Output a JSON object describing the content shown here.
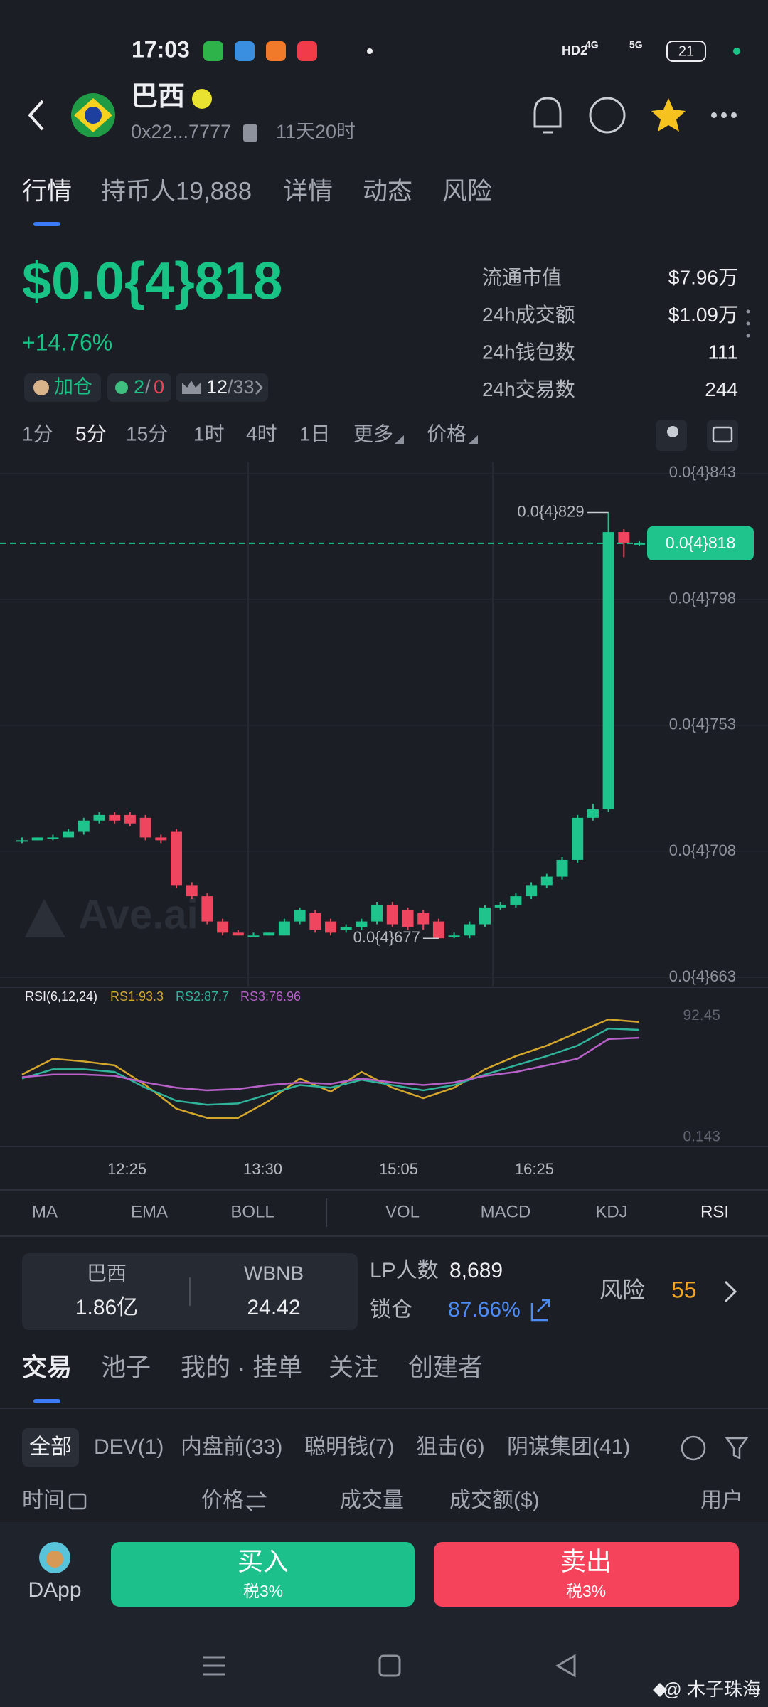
{
  "status_bar": {
    "time": "17:03",
    "hd": "HD2",
    "network_a": "4G",
    "network_b": "5G",
    "battery": "21"
  },
  "header": {
    "name": "巴西",
    "address": "0x22...7777",
    "age": "11天20时"
  },
  "tabs": [
    "行情",
    "持币人19,888",
    "详情",
    "动态",
    "风险"
  ],
  "price": {
    "value": "$0.0{4}818",
    "change": "+14.76%",
    "tag_add": "加仓",
    "dev_buy": "2",
    "dev_sep": "/",
    "dev_sell": "0",
    "rank": "12",
    "rank_total": "/33"
  },
  "stats": [
    {
      "label": "流通市值",
      "value": "$7.96万"
    },
    {
      "label": "24h成交额",
      "value": "$1.09万"
    },
    {
      "label": "24h钱包数",
      "value": "111"
    },
    {
      "label": "24h交易数",
      "value": "244"
    }
  ],
  "intervals": [
    "1分",
    "5分",
    "15分",
    "1时",
    "4时",
    "1日",
    "更多",
    "价格"
  ],
  "chart_data": [
    {
      "type": "candlestick",
      "watermark": "Ave.ai",
      "up_color": "#1ec48c",
      "down_color": "#f0455e",
      "open": [
        7.12e-05,
        7.12e-05,
        7.13e-05,
        7.13e-05,
        7.15e-05,
        7.19e-05,
        7.21e-05,
        7.21e-05,
        7.2e-05,
        7.13e-05,
        7.15e-05,
        6.96e-05,
        6.92e-05,
        6.83e-05,
        6.79e-05,
        6.78e-05,
        6.78e-05,
        6.78e-05,
        6.83e-05,
        6.86e-05,
        6.83e-05,
        6.8e-05,
        6.81e-05,
        6.83e-05,
        6.89e-05,
        6.87e-05,
        6.86e-05,
        6.83e-05,
        6.78e-05,
        6.78e-05,
        6.82e-05,
        6.88e-05,
        6.89e-05,
        6.92e-05,
        6.96e-05,
        6.99e-05,
        7.05e-05,
        7.2e-05,
        7.23e-05,
        8.22e-05,
        8.18e-05
      ],
      "close": [
        7.12e-05,
        7.13e-05,
        7.13e-05,
        7.15e-05,
        7.19e-05,
        7.21e-05,
        7.19e-05,
        7.18e-05,
        7.13e-05,
        7.12e-05,
        6.96e-05,
        6.92e-05,
        6.83e-05,
        6.79e-05,
        6.78e-05,
        6.78e-05,
        6.79e-05,
        6.83e-05,
        6.87e-05,
        6.8e-05,
        6.79e-05,
        6.81e-05,
        6.83e-05,
        6.89e-05,
        6.82e-05,
        6.81e-05,
        6.82e-05,
        6.77e-05,
        6.78e-05,
        6.82e-05,
        6.88e-05,
        6.89e-05,
        6.92e-05,
        6.96e-05,
        6.99e-05,
        7.05e-05,
        7.2e-05,
        7.23e-05,
        8.22e-05,
        8.18e-05,
        8.18e-05
      ],
      "high": [
        7.13e-05,
        7.13e-05,
        7.14e-05,
        7.16e-05,
        7.2e-05,
        7.22e-05,
        7.22e-05,
        7.22e-05,
        7.21e-05,
        7.14e-05,
        7.16e-05,
        6.97e-05,
        6.93e-05,
        6.84e-05,
        6.8e-05,
        6.79e-05,
        6.79e-05,
        6.84e-05,
        6.88e-05,
        6.87e-05,
        6.84e-05,
        6.82e-05,
        6.84e-05,
        6.9e-05,
        6.9e-05,
        6.88e-05,
        6.87e-05,
        6.84e-05,
        6.79e-05,
        6.83e-05,
        6.89e-05,
        6.9e-05,
        6.93e-05,
        6.97e-05,
        7e-05,
        7.06e-05,
        7.21e-05,
        7.25e-05,
        8.29e-05,
        8.23e-05,
        8.19e-05
      ],
      "low": [
        7.11e-05,
        7.12e-05,
        7.12e-05,
        7.13e-05,
        7.14e-05,
        7.18e-05,
        7.18e-05,
        7.17e-05,
        7.12e-05,
        7.11e-05,
        6.95e-05,
        6.91e-05,
        6.82e-05,
        6.78e-05,
        6.78e-05,
        6.78e-05,
        6.78e-05,
        6.78e-05,
        6.82e-05,
        6.79e-05,
        6.78e-05,
        6.79e-05,
        6.8e-05,
        6.82e-05,
        6.81e-05,
        6.8e-05,
        6.8e-05,
        6.77e-05,
        6.77e-05,
        6.77e-05,
        6.81e-05,
        6.87e-05,
        6.88e-05,
        6.91e-05,
        6.95e-05,
        6.98e-05,
        7.04e-05,
        7.19e-05,
        7.22e-05,
        8.13e-05,
        8.17e-05
      ],
      "ylim": [
        6.603e-05,
        8.469e-05
      ],
      "yticks": [
        {
          "value": 8.43e-05,
          "label": "0.0{4}843"
        },
        {
          "value": 7.98e-05,
          "label": "0.0{4}798"
        },
        {
          "value": 7.53e-05,
          "label": "0.0{4}753"
        },
        {
          "value": 7.08e-05,
          "label": "0.0{4}708"
        },
        {
          "value": 6.63e-05,
          "label": "0.0{4}663"
        }
      ],
      "last_price": {
        "value": 8.18e-05,
        "label": "0.0{4}818"
      },
      "high_label": {
        "value": 8.29e-05,
        "label": "0.0{4}829"
      },
      "low_label": {
        "value": 6.77e-05,
        "label": "0.0{4}677"
      }
    },
    {
      "type": "line",
      "title": "RSI(6,12,24)",
      "x": [
        0,
        2,
        4,
        6,
        8,
        10,
        12,
        14,
        16,
        18,
        20,
        22,
        24,
        26,
        28,
        30,
        32,
        34,
        36,
        38,
        40
      ],
      "xticks": [
        {
          "value": 6.8,
          "label": "12:25"
        },
        {
          "value": 15.6,
          "label": "13:30"
        },
        {
          "value": 24.4,
          "label": "15:05"
        },
        {
          "value": 33.2,
          "label": "16:25"
        }
      ],
      "series": [
        {
          "name": "RS1:93.3",
          "color": "#d4a72c",
          "values": [
            48,
            60,
            58,
            55,
            40,
            22,
            15,
            15,
            28,
            45,
            35,
            50,
            38,
            30,
            38,
            52,
            62,
            70,
            80,
            90,
            88
          ]
        },
        {
          "name": "RS2:87.7",
          "color": "#2fb39a",
          "values": [
            45,
            52,
            52,
            50,
            38,
            28,
            25,
            26,
            33,
            40,
            38,
            44,
            40,
            36,
            40,
            48,
            55,
            62,
            70,
            83,
            82
          ]
        },
        {
          "name": "RS3:76.96",
          "color": "#b660c8",
          "values": [
            46,
            48,
            48,
            47,
            42,
            38,
            36,
            37,
            40,
            42,
            41,
            45,
            42,
            40,
            42,
            47,
            50,
            55,
            60,
            75,
            76
          ]
        }
      ],
      "ylim": [
        -5.73,
        113.4
      ],
      "yticks": [
        92.45,
        0.143
      ]
    }
  ],
  "indicators": [
    "MA",
    "EMA",
    "BOLL",
    "VOL",
    "MACD",
    "KDJ",
    "RSI"
  ],
  "pool": {
    "token_a": "巴西",
    "amount_a": "1.86亿",
    "token_b": "WBNB",
    "amount_b": "24.42",
    "lp_label": "LP人数",
    "lp_value": "8,689",
    "lock_label": "锁仓",
    "lock_value": "87.66%",
    "risk_label": "风险",
    "risk_value": "55"
  },
  "trade_tabs": [
    "交易",
    "池子",
    "我的 · 挂单",
    "关注",
    "创建者"
  ],
  "filters": [
    "全部",
    "DEV(1)",
    "内盘前(33)",
    "聪明钱(7)",
    "狙击(6)",
    "阴谋集团(41)"
  ],
  "columns": [
    "时间",
    "价格",
    "成交量",
    "成交额($)",
    "用户"
  ],
  "bottom": {
    "dapp": "DApp",
    "buy": "买入",
    "buy_tax": "税3%",
    "sell": "卖出",
    "sell_tax": "税3%"
  },
  "watermark": "@ 木子珠海"
}
